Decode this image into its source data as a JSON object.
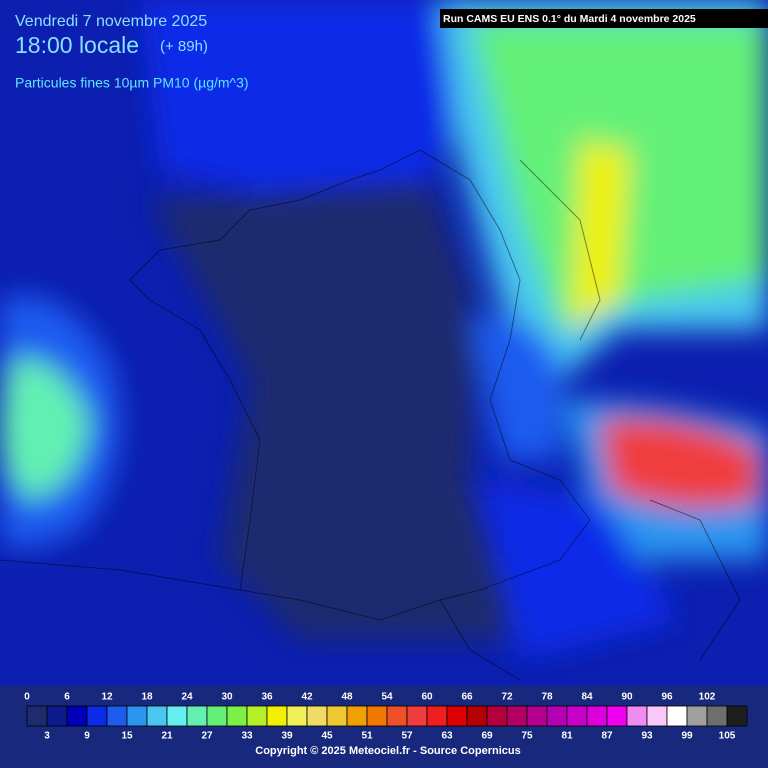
{
  "header": {
    "date": "Vendredi 7 novembre 2025",
    "time": "18:00 locale",
    "lead": "(+ 89h)",
    "variable": "Particules fines 10µm PM10 (µg/m^3)"
  },
  "run": "Run CAMS EU ENS 0.1° du Mardi 4 novembre 2025",
  "legend": {
    "ticks": [
      0,
      3,
      6,
      9,
      12,
      15,
      18,
      21,
      24,
      27,
      30,
      33,
      36,
      39,
      42,
      45,
      48,
      51,
      54,
      57,
      60,
      63,
      66,
      69,
      72,
      75,
      78,
      81,
      84,
      87,
      90,
      93,
      96,
      99,
      102,
      105
    ],
    "colors": [
      "#1c2c6e",
      "#0c1a8c",
      "#0000b8",
      "#0a2ae8",
      "#1e5cf0",
      "#2a96f0",
      "#48c8f0",
      "#64f0f0",
      "#64f0b4",
      "#64f078",
      "#7cf046",
      "#b4f028",
      "#f0f000",
      "#f0f05a",
      "#f0dc64",
      "#f0c832",
      "#f0a000",
      "#f07800",
      "#f05028",
      "#f03c3c",
      "#f01e1e",
      "#dc0000",
      "#b40000",
      "#b4003c",
      "#b40064",
      "#b4008c",
      "#b400b4",
      "#c800c8",
      "#dc00dc",
      "#f000f0",
      "#f08cf0",
      "#fac8fa",
      "#ffffff",
      "#a0a0a0",
      "#6e6e6e",
      "#1e1e1e"
    ]
  },
  "footer": "Copyright © 2025 Meteociel.fr - Source Copernicus"
}
